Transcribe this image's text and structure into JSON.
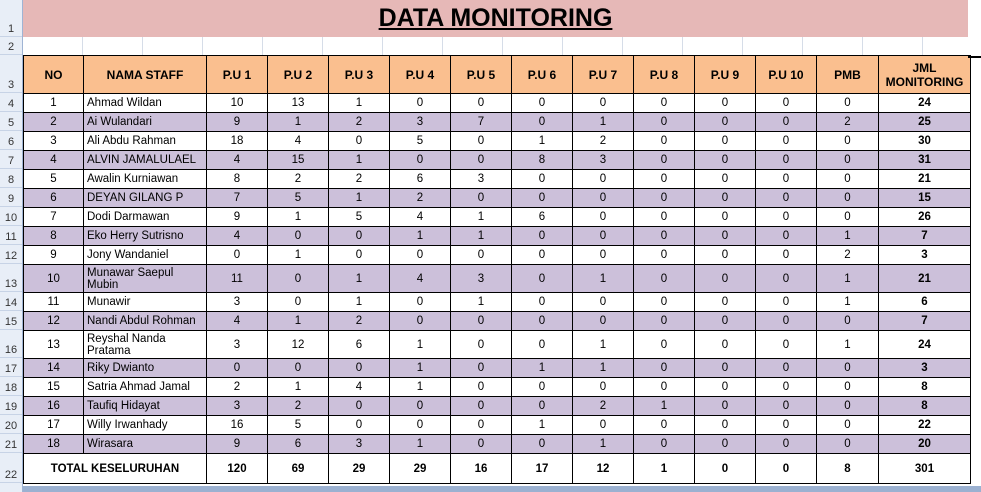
{
  "title": "DATA MONITORING",
  "row_numbers": [
    "1",
    "2",
    "3",
    "4",
    "5",
    "6",
    "7",
    "8",
    "9",
    "10",
    "11",
    "12",
    "13",
    "14",
    "15",
    "16",
    "17",
    "18",
    "19",
    "20",
    "21",
    "22"
  ],
  "headers": [
    "NO",
    "NAMA STAFF",
    "P.U 1",
    "P.U 2",
    "P.U 3",
    "P.U 4",
    "P.U 5",
    "P.U 6",
    "P.U 7",
    "P.U 8",
    "P.U 9",
    "P.U 10",
    "PMB",
    "JML MONITORING"
  ],
  "rows": [
    {
      "no": "1",
      "name": "Ahmad Wildan",
      "vals": [
        "10",
        "13",
        "1",
        "0",
        "0",
        "0",
        "0",
        "0",
        "0",
        "0",
        "0"
      ],
      "total": "24"
    },
    {
      "no": "2",
      "name": "Ai Wulandari",
      "vals": [
        "9",
        "1",
        "2",
        "3",
        "7",
        "0",
        "1",
        "0",
        "0",
        "0",
        "2"
      ],
      "total": "25"
    },
    {
      "no": "3",
      "name": "Ali Abdu Rahman",
      "vals": [
        "18",
        "4",
        "0",
        "5",
        "0",
        "1",
        "2",
        "0",
        "0",
        "0",
        "0"
      ],
      "total": "30"
    },
    {
      "no": "4",
      "name": "ALVIN JAMALULAEL",
      "vals": [
        "4",
        "15",
        "1",
        "0",
        "0",
        "8",
        "3",
        "0",
        "0",
        "0",
        "0"
      ],
      "total": "31"
    },
    {
      "no": "5",
      "name": "Awalin Kurniawan",
      "vals": [
        "8",
        "2",
        "2",
        "6",
        "3",
        "0",
        "0",
        "0",
        "0",
        "0",
        "0"
      ],
      "total": "21"
    },
    {
      "no": "6",
      "name": "DEYAN GILANG P",
      "vals": [
        "7",
        "5",
        "1",
        "2",
        "0",
        "0",
        "0",
        "0",
        "0",
        "0",
        "0"
      ],
      "total": "15"
    },
    {
      "no": "7",
      "name": "Dodi Darmawan",
      "vals": [
        "9",
        "1",
        "5",
        "4",
        "1",
        "6",
        "0",
        "0",
        "0",
        "0",
        "0"
      ],
      "total": "26"
    },
    {
      "no": "8",
      "name": "Eko Herry Sutrisno",
      "vals": [
        "4",
        "0",
        "0",
        "1",
        "1",
        "0",
        "0",
        "0",
        "0",
        "0",
        "1"
      ],
      "total": "7"
    },
    {
      "no": "9",
      "name": "Jony Wandaniel",
      "vals": [
        "0",
        "1",
        "0",
        "0",
        "0",
        "0",
        "0",
        "0",
        "0",
        "0",
        "2"
      ],
      "total": "3"
    },
    {
      "no": "10",
      "name": "Munawar Saepul Mubin",
      "vals": [
        "11",
        "0",
        "1",
        "4",
        "3",
        "0",
        "1",
        "0",
        "0",
        "0",
        "1"
      ],
      "total": "21"
    },
    {
      "no": "11",
      "name": "Munawir",
      "vals": [
        "3",
        "0",
        "1",
        "0",
        "1",
        "0",
        "0",
        "0",
        "0",
        "0",
        "1"
      ],
      "total": "6"
    },
    {
      "no": "12",
      "name": "Nandi Abdul Rohman",
      "vals": [
        "4",
        "1",
        "2",
        "0",
        "0",
        "0",
        "0",
        "0",
        "0",
        "0",
        "0"
      ],
      "total": "7"
    },
    {
      "no": "13",
      "name": "Reyshal Nanda Pratama",
      "vals": [
        "3",
        "12",
        "6",
        "1",
        "0",
        "0",
        "1",
        "0",
        "0",
        "0",
        "1"
      ],
      "total": "24"
    },
    {
      "no": "14",
      "name": "Riky Dwianto",
      "vals": [
        "0",
        "0",
        "0",
        "1",
        "0",
        "1",
        "1",
        "0",
        "0",
        "0",
        "0"
      ],
      "total": "3"
    },
    {
      "no": "15",
      "name": "Satria Ahmad Jamal",
      "vals": [
        "2",
        "1",
        "4",
        "1",
        "0",
        "0",
        "0",
        "0",
        "0",
        "0",
        "0"
      ],
      "total": "8"
    },
    {
      "no": "16",
      "name": "Taufiq Hidayat",
      "vals": [
        "3",
        "2",
        "0",
        "0",
        "0",
        "0",
        "2",
        "1",
        "0",
        "0",
        "0"
      ],
      "total": "8"
    },
    {
      "no": "17",
      "name": "Willy Irwanhady",
      "vals": [
        "16",
        "5",
        "0",
        "0",
        "0",
        "1",
        "0",
        "0",
        "0",
        "0",
        "0"
      ],
      "total": "22"
    },
    {
      "no": "18",
      "name": "Wirasara",
      "vals": [
        "9",
        "6",
        "3",
        "1",
        "0",
        "0",
        "1",
        "0",
        "0",
        "0",
        "0"
      ],
      "total": "20"
    }
  ],
  "summary": {
    "label": "TOTAL KESELURUHAN",
    "vals": [
      "120",
      "69",
      "29",
      "29",
      "16",
      "17",
      "12",
      "1",
      "0",
      "0",
      "8"
    ],
    "total": "301"
  },
  "colors": {
    "title_band": "#e6b8b7",
    "header": "#fabf8f",
    "alt_row": "#ccc0da"
  }
}
